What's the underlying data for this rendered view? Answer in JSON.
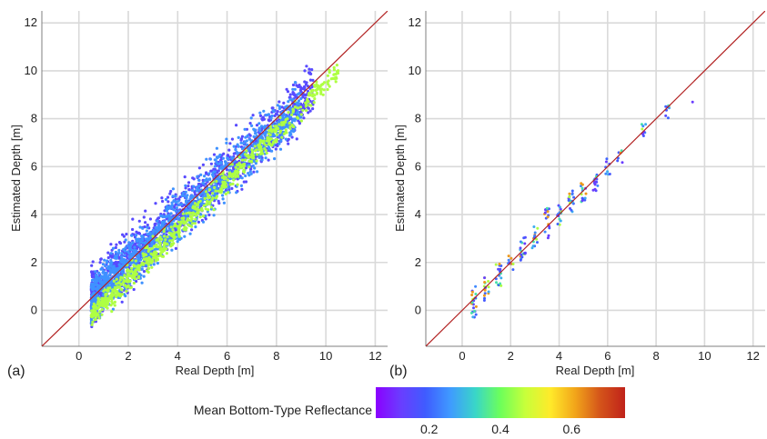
{
  "colors": {
    "grid": "#d9d9d9",
    "axis": "#7f7f7f",
    "identity_line": "#b22222",
    "colormap": [
      "#8b00ff",
      "#6a3dff",
      "#3f5cff",
      "#3f9bff",
      "#39d6c8",
      "#6dff5a",
      "#c8ff3a",
      "#ffea2a",
      "#f2a51a",
      "#d4541a",
      "#c0221a"
    ]
  },
  "colorbar": {
    "title": "Mean Bottom-Type Reflectance",
    "range": [
      0.05,
      0.75
    ],
    "ticks": [
      {
        "value": 0.2,
        "label": "0.2"
      },
      {
        "value": 0.4,
        "label": "0.4"
      },
      {
        "value": 0.6,
        "label": "0.6"
      }
    ]
  },
  "chart_data": [
    {
      "type": "scatter",
      "panel_label": "(a)",
      "xlabel": "Real Depth [m]",
      "ylabel": "Estimated Depth [m]",
      "xlim": [
        -1.5,
        12.5
      ],
      "ylim": [
        -1.5,
        12.5
      ],
      "xticks": [
        0,
        2,
        4,
        6,
        8,
        10,
        12
      ],
      "yticks": [
        0,
        2,
        4,
        6,
        8,
        10,
        12
      ],
      "grid": true,
      "reference_line": "y = x",
      "point_density": "dense",
      "x_range_of_points": [
        0.5,
        10.5
      ],
      "trend_summary": [
        {
          "reflectance": 0.15,
          "x": [
            0.5,
            9.5
          ],
          "y": [
            0.6,
            9.2
          ],
          "spread": 0.55
        },
        {
          "reflectance": 0.25,
          "x": [
            0.5,
            9.0
          ],
          "y": [
            0.5,
            8.6
          ],
          "spread": 0.5
        },
        {
          "reflectance": 0.45,
          "x": [
            0.5,
            10.5
          ],
          "y": [
            -0.2,
            10.0
          ],
          "spread": 0.25
        }
      ]
    },
    {
      "type": "scatter",
      "panel_label": "(b)",
      "xlabel": "Real Depth [m]",
      "ylabel": "Estimated Depth [m]",
      "xlim": [
        -1.5,
        12.5
      ],
      "ylim": [
        -1.5,
        12.5
      ],
      "xticks": [
        0,
        2,
        4,
        6,
        8,
        10,
        12
      ],
      "yticks": [
        0,
        2,
        4,
        6,
        8,
        10,
        12
      ],
      "grid": true,
      "reference_line": "y = x",
      "point_density": "sparse",
      "groups": [
        {
          "x": 0.5,
          "y_range": [
            -0.3,
            1.3
          ],
          "n": 22
        },
        {
          "x": 1.0,
          "y_range": [
            0.4,
            1.4
          ],
          "n": 16
        },
        {
          "x": 1.5,
          "y_range": [
            1.0,
            2.0
          ],
          "n": 18
        },
        {
          "x": 2.0,
          "y_range": [
            1.6,
            2.3
          ],
          "n": 12
        },
        {
          "x": 2.5,
          "y_range": [
            2.0,
            3.1
          ],
          "n": 18
        },
        {
          "x": 3.0,
          "y_range": [
            2.6,
            3.6
          ],
          "n": 14
        },
        {
          "x": 3.5,
          "y_range": [
            3.0,
            4.3
          ],
          "n": 18
        },
        {
          "x": 4.0,
          "y_range": [
            3.5,
            4.5
          ],
          "n": 14
        },
        {
          "x": 4.5,
          "y_range": [
            4.0,
            5.0
          ],
          "n": 18
        },
        {
          "x": 5.0,
          "y_range": [
            4.5,
            5.6
          ],
          "n": 14
        },
        {
          "x": 5.5,
          "y_range": [
            5.0,
            6.0
          ],
          "n": 14
        },
        {
          "x": 6.0,
          "y_range": [
            5.6,
            6.4
          ],
          "n": 8
        },
        {
          "x": 6.5,
          "y_range": [
            6.0,
            6.8
          ],
          "n": 6
        },
        {
          "x": 7.5,
          "y_range": [
            7.2,
            8.1
          ],
          "n": 8
        },
        {
          "x": 8.5,
          "y_range": [
            8.0,
            8.6
          ],
          "n": 8
        },
        {
          "x": 9.5,
          "y_range": [
            8.7,
            8.8
          ],
          "n": 1
        }
      ]
    }
  ]
}
